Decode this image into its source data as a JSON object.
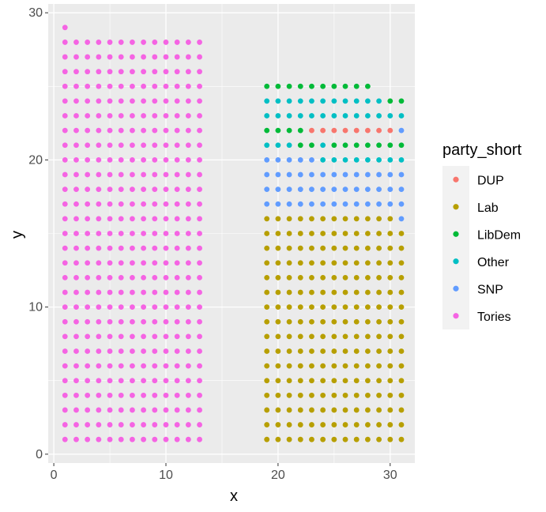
{
  "chart_data": {
    "type": "scatter",
    "xlabel": "x",
    "ylabel": "y",
    "xlim": [
      -0.5,
      32.2
    ],
    "ylim": [
      -0.6,
      30.6
    ],
    "x_ticks": [
      0,
      10,
      20,
      30
    ],
    "y_ticks": [
      0,
      10,
      20,
      30
    ],
    "grid": true,
    "legend": {
      "title": "party_short",
      "position": "right"
    },
    "series": [
      {
        "name": "DUP",
        "color": "#F8766D",
        "points": [
          [
            23,
            22
          ],
          [
            24,
            22
          ],
          [
            25,
            22
          ],
          [
            26,
            22
          ],
          [
            27,
            22
          ],
          [
            28,
            22
          ],
          [
            29,
            22
          ],
          [
            30,
            22
          ]
        ]
      },
      {
        "name": "Lab",
        "color": "#B79F00",
        "row_blocks": [
          {
            "x_from": 19,
            "x_to": 31,
            "y_from": 1,
            "y_to": 15
          },
          {
            "x_from": 19,
            "x_to": 30,
            "y_from": 16,
            "y_to": 16
          }
        ]
      },
      {
        "name": "LibDem",
        "color": "#00BA38",
        "row_blocks": [
          {
            "x_from": 19,
            "x_to": 28,
            "y_from": 25,
            "y_to": 25
          },
          {
            "x_from": 19,
            "x_to": 22,
            "y_from": 22,
            "y_to": 22
          }
        ],
        "points": [
          [
            30,
            24
          ],
          [
            31,
            24
          ],
          [
            22,
            21
          ],
          [
            23,
            21
          ],
          [
            25,
            21
          ],
          [
            26,
            21
          ],
          [
            27,
            21
          ],
          [
            28,
            21
          ],
          [
            29,
            21
          ],
          [
            30,
            21
          ],
          [
            31,
            21
          ]
        ]
      },
      {
        "name": "Other",
        "color": "#00BFC4",
        "row_blocks": [
          {
            "x_from": 19,
            "x_to": 29,
            "y_from": 24,
            "y_to": 24
          },
          {
            "x_from": 19,
            "x_to": 31,
            "y_from": 23,
            "y_to": 23
          },
          {
            "x_from": 24,
            "x_to": 30,
            "y_from": 20,
            "y_to": 20
          }
        ],
        "points": [
          [
            19,
            21
          ],
          [
            20,
            21
          ],
          [
            21,
            21
          ],
          [
            24,
            21
          ],
          [
            31,
            20
          ]
        ]
      },
      {
        "name": "SNP",
        "color": "#619CFF",
        "row_blocks": [
          {
            "x_from": 19,
            "x_to": 31,
            "y_from": 17,
            "y_to": 19
          },
          {
            "x_from": 19,
            "x_to": 23,
            "y_from": 20,
            "y_to": 20
          }
        ],
        "points": [
          [
            31,
            22
          ],
          [
            31,
            16
          ]
        ]
      },
      {
        "name": "Tories",
        "color": "#F564E3",
        "row_blocks": [
          {
            "x_from": 1,
            "x_to": 13,
            "y_from": 1,
            "y_to": 28
          }
        ],
        "points": [
          [
            1,
            29
          ]
        ]
      }
    ]
  }
}
